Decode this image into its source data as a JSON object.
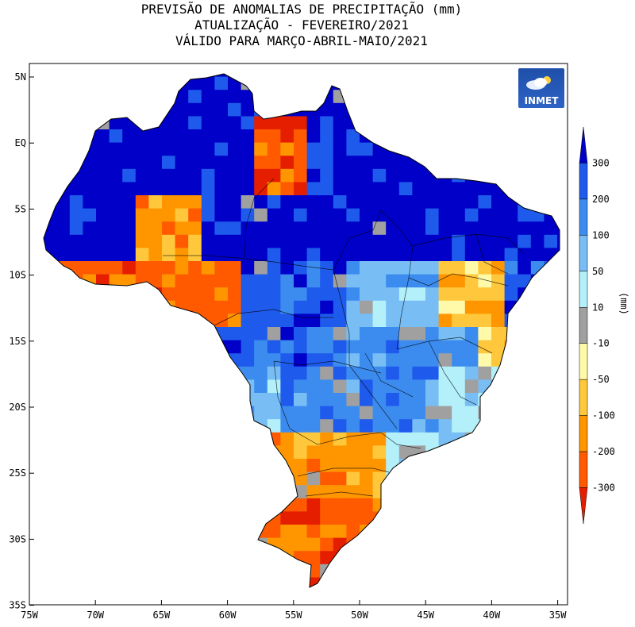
{
  "title": {
    "line1": "PREVISÃO DE ANOMALIAS DE PRECIPITAÇÃO (mm)",
    "line2": "ATUALIZAÇÃO - FEVEREIRO/2021",
    "line3": "VÁLIDO PARA MARÇO-ABRIL-MAIO/2021"
  },
  "logo": {
    "text": "INMET"
  },
  "axes": {
    "lat_labels": [
      "5N",
      "EQ",
      "5S",
      "10S",
      "15S",
      "20S",
      "25S",
      "30S",
      "35S"
    ],
    "lon_labels": [
      "75W",
      "70W",
      "65W",
      "60W",
      "55W",
      "50W",
      "45W",
      "40W",
      "35W"
    ]
  },
  "legend": {
    "unit": "(mm)",
    "tick_labels": [
      "300",
      "200",
      "100",
      "50",
      "10",
      "-10",
      "-50",
      "-100",
      "-200",
      "-300"
    ],
    "colors": [
      "#0000c8",
      "#1e5aeb",
      "#3c8cf0",
      "#78bef5",
      "#b4f0fa",
      "#a0a0a0",
      "#fffaaa",
      "#ffc83c",
      "#ff9600",
      "#ff5a00",
      "#e61e00"
    ]
  },
  "colors": {
    "very_wet": "#0000c8",
    "wet": "#1e5aeb",
    "moderate_wet": "#3c8cf0",
    "slight_wet": "#78bef5",
    "near_normal_wet": "#b4f0fa",
    "normal": "#a0a0a0",
    "slight_dry": "#fffaaa",
    "moderate_dry": "#ffc83c",
    "dry": "#ff9600",
    "very_dry": "#ff5a00",
    "extreme_dry": "#e61e00"
  }
}
